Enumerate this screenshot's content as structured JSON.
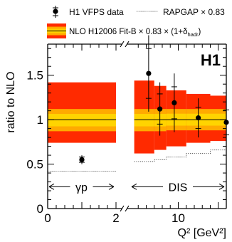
{
  "chart_data": {
    "type": "scatter",
    "experiment_label": "H1",
    "xlabel": "Q² [GeV²]",
    "ylabel": "ratio to NLO",
    "ylim": [
      0,
      1.85
    ],
    "yticks": [
      {
        "value": 0,
        "label": "0"
      },
      {
        "value": 0.5,
        "label": "0.5"
      },
      {
        "value": 1,
        "label": "1"
      },
      {
        "value": 1.5,
        "label": "1.5"
      }
    ],
    "x_axis_segments": [
      {
        "name": "photoproduction",
        "range": [
          0,
          2
        ],
        "ticks": [
          {
            "value": 0,
            "label": "0"
          },
          {
            "value": 2,
            "label": "2"
          }
        ]
      },
      {
        "name": "DIS",
        "range": [
          4,
          16
        ],
        "ticks": [
          {
            "value": 10,
            "label": "10"
          }
        ]
      }
    ],
    "region_labels": [
      {
        "text": "γp",
        "from": 0,
        "to": 2
      },
      {
        "text": "DIS",
        "from": 4,
        "to": 16
      }
    ],
    "legend": [
      {
        "label": "H1 VFPS data",
        "marker": "point-with-errors"
      },
      {
        "label": "RAPGAP × 0.83",
        "marker": "dotted-line"
      },
      {
        "label": "NLO H12006 Fit-B × 0.83 × (1+δ",
        "subscript": "hadr",
        "suffix": ")",
        "marker": "band"
      }
    ],
    "series": [
      {
        "name": "H1 VFPS data",
        "points": [
          {
            "x": 1.0,
            "y": 0.55,
            "stat": 0.03,
            "tot": 0.05
          },
          {
            "x": 6.3,
            "y": 1.52,
            "stat": 0.28,
            "tot": 0.43
          },
          {
            "x": 7.7,
            "y": 1.12,
            "stat": 0.17,
            "tot": 0.3
          },
          {
            "x": 9.5,
            "y": 1.19,
            "stat": 0.18,
            "tot": 0.33
          },
          {
            "x": 12.5,
            "y": 1.02,
            "stat": 0.12,
            "tot": 0.22
          },
          {
            "x": 16.7,
            "y": 0.97,
            "stat": 0.14,
            "tot": 0.22
          }
        ]
      },
      {
        "name": "NLO H12006 Fit-B",
        "bands": [
          {
            "x_from": 0,
            "x_to": 2,
            "outer": [
              0.74,
              1.42
            ],
            "inner": [
              0.87,
              1.12
            ]
          },
          {
            "x_from": 4.5,
            "x_to": 7,
            "outer": [
              0.62,
              1.44
            ],
            "inner": [
              0.87,
              1.12
            ]
          },
          {
            "x_from": 7,
            "x_to": 8.5,
            "outer": [
              0.66,
              1.38
            ],
            "inner": [
              0.87,
              1.12
            ]
          },
          {
            "x_from": 8.5,
            "x_to": 11,
            "outer": [
              0.7,
              1.33
            ],
            "inner": [
              0.88,
              1.12
            ]
          },
          {
            "x_from": 11,
            "x_to": 14,
            "outer": [
              0.74,
              1.29
            ],
            "inner": [
              0.88,
              1.12
            ]
          },
          {
            "x_from": 14,
            "x_to": 20,
            "outer": [
              0.76,
              1.27
            ],
            "inner": [
              0.88,
              1.12
            ]
          }
        ]
      },
      {
        "name": "RAPGAP × 0.83",
        "steps": [
          {
            "x_from": 0,
            "x_to": 2,
            "y": 0.42
          },
          {
            "x_from": 4.5,
            "x_to": 7,
            "y": 0.53
          },
          {
            "x_from": 7,
            "x_to": 8.5,
            "y": 0.55
          },
          {
            "x_from": 8.5,
            "x_to": 11,
            "y": 0.58
          },
          {
            "x_from": 11,
            "x_to": 14,
            "y": 0.62
          },
          {
            "x_from": 14,
            "x_to": 20,
            "y": 0.66
          }
        ]
      }
    ],
    "colors": {
      "band_outer": "#ff2a00",
      "band_middle": "#ffaa00",
      "band_inner": "#ffd400",
      "reference_line": "#000000",
      "data": "#000000"
    }
  }
}
